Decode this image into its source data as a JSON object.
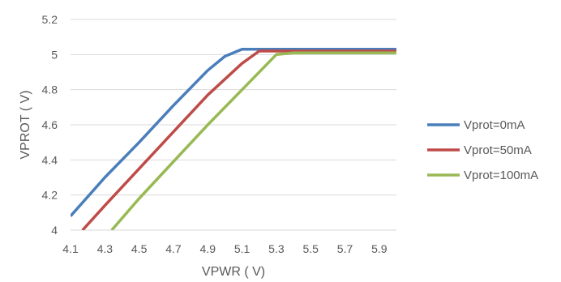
{
  "chart_data": {
    "type": "line",
    "title": "",
    "xlabel": "VPWR ( V)",
    "ylabel": "VPROT ( V)",
    "xlim": [
      4.1,
      6.0
    ],
    "ylim": [
      4.0,
      5.2
    ],
    "x_ticks": [
      "4.1",
      "4.3",
      "4.5",
      "4.7",
      "4.9",
      "5.1",
      "5.3",
      "5.5",
      "5.7",
      "5.9"
    ],
    "y_ticks": [
      "4",
      "4.2",
      "4.4",
      "4.6",
      "4.8",
      "5",
      "5.2"
    ],
    "grid": "horizontal",
    "legend_position": "right",
    "series": [
      {
        "name": "Vprot=0mA",
        "color": "#4a7ebb",
        "points": [
          [
            4.1,
            4.08
          ],
          [
            4.3,
            4.3
          ],
          [
            4.5,
            4.5
          ],
          [
            4.7,
            4.71
          ],
          [
            4.9,
            4.91
          ],
          [
            5.0,
            4.99
          ],
          [
            5.1,
            5.03
          ],
          [
            6.0,
            5.03
          ]
        ]
      },
      {
        "name": "Vprot=50mA",
        "color": "#be4b48",
        "points": [
          [
            4.17,
            4.0
          ],
          [
            4.3,
            4.14
          ],
          [
            4.5,
            4.35
          ],
          [
            4.7,
            4.56
          ],
          [
            4.9,
            4.77
          ],
          [
            5.1,
            4.95
          ],
          [
            5.2,
            5.02
          ],
          [
            6.0,
            5.02
          ]
        ]
      },
      {
        "name": "Vprot=100mA",
        "color": "#98b954",
        "points": [
          [
            4.34,
            4.0
          ],
          [
            4.5,
            4.18
          ],
          [
            4.7,
            4.39
          ],
          [
            4.9,
            4.6
          ],
          [
            5.1,
            4.8
          ],
          [
            5.3,
            5.0
          ],
          [
            5.4,
            5.01
          ],
          [
            6.0,
            5.01
          ]
        ]
      }
    ]
  }
}
